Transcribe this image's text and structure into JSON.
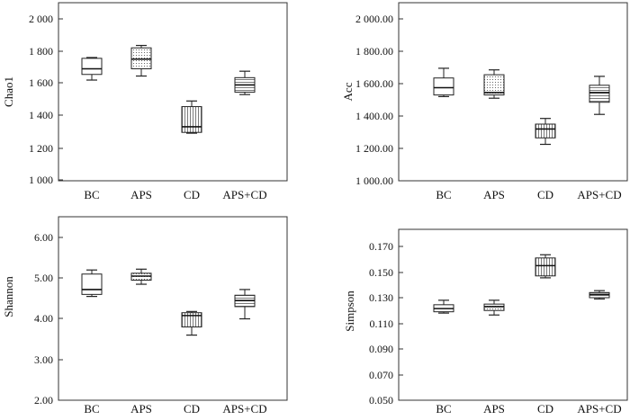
{
  "chart_data": [
    {
      "type": "boxplot",
      "ylabel": "Chao1",
      "ylim": [
        1000,
        2000
      ],
      "yticks": [
        1000,
        1200,
        1400,
        1600,
        1800,
        2000
      ],
      "ytick_labels": [
        "1 000",
        "1 200",
        "1 400",
        "1 600",
        "1 800",
        "2 000"
      ],
      "categories": [
        "BC",
        "APS",
        "CD",
        "APS+CD"
      ],
      "patterns": [
        "none",
        "dots",
        "vlines",
        "hlines"
      ],
      "boxes": [
        {
          "min": 1620,
          "q1": 1655,
          "median": 1690,
          "q3": 1755,
          "max": 1760
        },
        {
          "min": 1645,
          "q1": 1690,
          "median": 1750,
          "q3": 1820,
          "max": 1835
        },
        {
          "min": 1290,
          "q1": 1295,
          "median": 1330,
          "q3": 1455,
          "max": 1490
        },
        {
          "min": 1530,
          "q1": 1545,
          "median": 1590,
          "q3": 1635,
          "max": 1675
        }
      ]
    },
    {
      "type": "boxplot",
      "ylabel": "Acc",
      "ylim": [
        1000,
        2000
      ],
      "yticks": [
        1000,
        1200,
        1400,
        1600,
        1800,
        2000
      ],
      "ytick_labels": [
        "1 000.00",
        "1 200.00",
        "1 400.00",
        "1 600.00",
        "1 800.00",
        "2 000.00"
      ],
      "categories": [
        "BC",
        "APS",
        "CD",
        "APS+CD"
      ],
      "patterns": [
        "none",
        "dots",
        "vlines",
        "hlines"
      ],
      "boxes": [
        {
          "min": 1520,
          "q1": 1530,
          "median": 1575,
          "q3": 1635,
          "max": 1695
        },
        {
          "min": 1510,
          "q1": 1530,
          "median": 1545,
          "q3": 1655,
          "max": 1685
        },
        {
          "min": 1225,
          "q1": 1265,
          "median": 1320,
          "q3": 1350,
          "max": 1385
        },
        {
          "min": 1410,
          "q1": 1485,
          "median": 1545,
          "q3": 1590,
          "max": 1645
        }
      ]
    },
    {
      "type": "boxplot",
      "ylabel": "Shannon",
      "ylim": [
        2,
        6.5
      ],
      "yticks": [
        2,
        3,
        4,
        5,
        6
      ],
      "ytick_labels": [
        "2.00",
        "3.00",
        "4.00",
        "5.00",
        "6.00"
      ],
      "categories": [
        "BC",
        "APS",
        "CD",
        "APS+CD"
      ],
      "patterns": [
        "none",
        "dots",
        "vlines",
        "hlines"
      ],
      "boxes": [
        {
          "min": 4.55,
          "q1": 4.6,
          "median": 4.72,
          "q3": 5.1,
          "max": 5.2
        },
        {
          "min": 4.85,
          "q1": 4.95,
          "median": 5.05,
          "q3": 5.12,
          "max": 5.22
        },
        {
          "min": 3.6,
          "q1": 3.8,
          "median": 4.08,
          "q3": 4.15,
          "max": 4.18
        },
        {
          "min": 4.0,
          "q1": 4.3,
          "median": 4.45,
          "q3": 4.58,
          "max": 4.72
        }
      ]
    },
    {
      "type": "boxplot",
      "ylabel": "Simpson",
      "ylim": [
        0.05,
        0.18
      ],
      "yticks": [
        0.05,
        0.07,
        0.09,
        0.11,
        0.13,
        0.15,
        0.17
      ],
      "ytick_labels": [
        "0.050",
        "0.070",
        "0.090",
        "0.110",
        "0.130",
        "0.150",
        "0.170"
      ],
      "categories": [
        "BC",
        "APS",
        "CD",
        "APS+CD"
      ],
      "patterns": [
        "none",
        "dots",
        "vlines",
        "hlines"
      ],
      "boxes": [
        {
          "min": 0.118,
          "q1": 0.119,
          "median": 0.1215,
          "q3": 0.1245,
          "max": 0.128
        },
        {
          "min": 0.1165,
          "q1": 0.12,
          "median": 0.123,
          "q3": 0.125,
          "max": 0.128
        },
        {
          "min": 0.1455,
          "q1": 0.147,
          "median": 0.155,
          "q3": 0.161,
          "max": 0.1635
        },
        {
          "min": 0.129,
          "q1": 0.13,
          "median": 0.1325,
          "q3": 0.134,
          "max": 0.1355
        }
      ]
    }
  ]
}
